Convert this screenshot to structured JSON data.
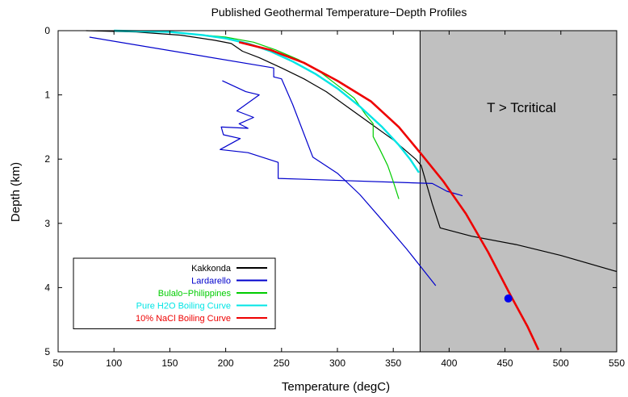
{
  "chart_data": {
    "type": "line",
    "title": "Published Geothermal Temperature−Depth Profiles",
    "xlabel": "Temperature (degC)",
    "ylabel": "Depth (km)",
    "xlim": [
      50,
      550
    ],
    "ylim": [
      0,
      5
    ],
    "y_inverted": true,
    "x_ticks": [
      50,
      100,
      150,
      200,
      250,
      300,
      350,
      400,
      450,
      500,
      550
    ],
    "y_ticks": [
      0,
      1,
      2,
      3,
      4,
      5
    ],
    "grid": false,
    "legend_position": "bottom-left",
    "shaded_region": {
      "label": "T > Tcritical",
      "x_start": 374,
      "x_end": 550,
      "color": "#c0c0c0"
    },
    "series": [
      {
        "name": "Kakkonda",
        "color": "#000000",
        "points": [
          [
            75,
            0
          ],
          [
            120,
            0.02
          ],
          [
            160,
            0.07
          ],
          [
            190,
            0.15
          ],
          [
            205,
            0.2
          ],
          [
            215,
            0.32
          ],
          [
            230,
            0.42
          ],
          [
            250,
            0.58
          ],
          [
            270,
            0.75
          ],
          [
            290,
            0.95
          ],
          [
            310,
            1.2
          ],
          [
            330,
            1.45
          ],
          [
            350,
            1.7
          ],
          [
            370,
            2.0
          ],
          [
            375,
            2.1
          ],
          [
            385,
            2.7
          ],
          [
            392,
            3.07
          ],
          [
            420,
            3.2
          ],
          [
            460,
            3.33
          ],
          [
            500,
            3.5
          ],
          [
            550,
            3.75
          ]
        ]
      },
      {
        "name": "Lardarello",
        "color": "#0000cc",
        "points": [
          [
            78,
            0.1
          ],
          [
            243,
            0.58
          ],
          [
            243,
            0.72
          ],
          [
            250,
            0.75
          ],
          [
            260,
            1.15
          ],
          [
            278,
            1.97
          ],
          [
            300,
            2.22
          ],
          [
            320,
            2.55
          ],
          [
            340,
            2.95
          ],
          [
            362,
            3.4
          ],
          [
            388,
            3.97
          ]
        ]
      },
      {
        "name": "Lardarello",
        "color": "#0000cc",
        "points": [
          [
            197,
            0.78
          ],
          [
            218,
            0.95
          ],
          [
            230,
            1.0
          ],
          [
            210,
            1.25
          ],
          [
            225,
            1.35
          ],
          [
            212,
            1.45
          ],
          [
            220,
            1.52
          ],
          [
            196,
            1.5
          ],
          [
            198,
            1.62
          ],
          [
            213,
            1.68
          ],
          [
            195,
            1.85
          ],
          [
            220,
            1.9
          ],
          [
            247,
            2.05
          ],
          [
            247,
            2.3
          ],
          [
            385,
            2.38
          ],
          [
            398,
            2.5
          ],
          [
            412,
            2.57
          ]
        ]
      },
      {
        "name": "Bulalo−Philippines",
        "color": "#00cc00",
        "points": [
          [
            100,
            0
          ],
          [
            150,
            0.02
          ],
          [
            200,
            0.1
          ],
          [
            225,
            0.18
          ],
          [
            245,
            0.3
          ],
          [
            265,
            0.45
          ],
          [
            285,
            0.65
          ],
          [
            300,
            0.85
          ],
          [
            315,
            1.05
          ],
          [
            325,
            1.3
          ],
          [
            332,
            1.45
          ],
          [
            332,
            1.65
          ],
          [
            338,
            1.85
          ],
          [
            345,
            2.1
          ],
          [
            350,
            2.35
          ],
          [
            355,
            2.62
          ]
        ]
      },
      {
        "name": "Pure H2O Boiling Curve",
        "color": "#00e5e5",
        "points": [
          [
            100,
            0
          ],
          [
            150,
            0.02
          ],
          [
            180,
            0.07
          ],
          [
            200,
            0.12
          ],
          [
            220,
            0.2
          ],
          [
            240,
            0.32
          ],
          [
            260,
            0.48
          ],
          [
            280,
            0.67
          ],
          [
            300,
            0.9
          ],
          [
            320,
            1.18
          ],
          [
            340,
            1.5
          ],
          [
            355,
            1.78
          ],
          [
            365,
            2.0
          ],
          [
            373,
            2.21
          ]
        ]
      },
      {
        "name": "10% NaCl Boiling Curve",
        "color": "#ee0000",
        "points": [
          [
            212,
            0.18
          ],
          [
            240,
            0.3
          ],
          [
            270,
            0.5
          ],
          [
            300,
            0.78
          ],
          [
            330,
            1.1
          ],
          [
            355,
            1.5
          ],
          [
            375,
            1.92
          ],
          [
            395,
            2.35
          ],
          [
            415,
            2.85
          ],
          [
            435,
            3.45
          ],
          [
            455,
            4.12
          ],
          [
            470,
            4.6
          ],
          [
            480,
            4.97
          ]
        ]
      }
    ],
    "marker": {
      "x": 453,
      "y": 4.17,
      "color": "#0000ee"
    }
  }
}
